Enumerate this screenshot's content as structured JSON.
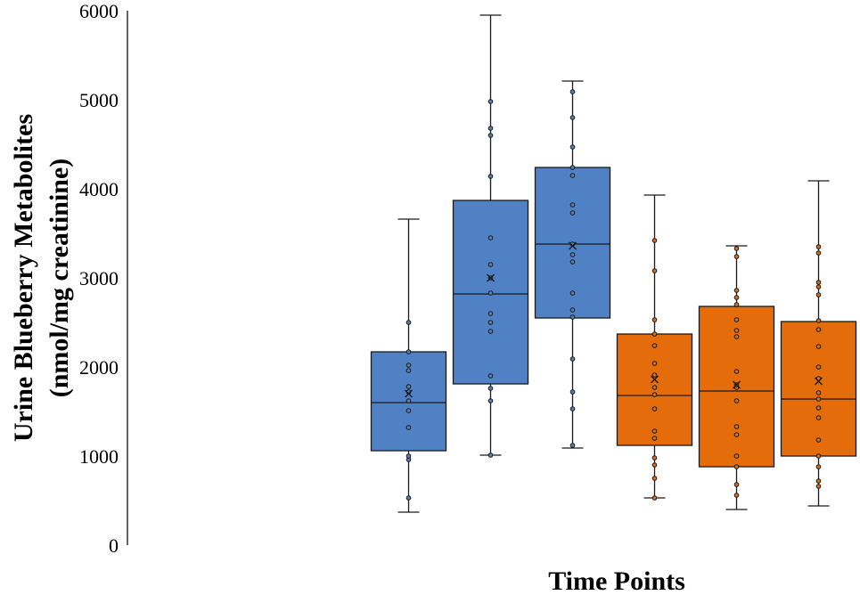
{
  "chart_data": {
    "type": "box",
    "xlabel": "Time Points",
    "ylabel_line1": "Urine Blueberry Metabolites",
    "ylabel_line2": "(nmol/mg creatinine)",
    "ylim": [
      0,
      6000
    ],
    "yticks": [
      0,
      1000,
      2000,
      3000,
      4000,
      5000,
      6000
    ],
    "grid": false,
    "colors": {
      "blue": "#4f81c4",
      "orange": "#e46c0a",
      "stroke": "#1a1a1a"
    },
    "boxes": [
      {
        "color": "blue",
        "min": 370,
        "q1": 1060,
        "median": 1600,
        "q3": 2170,
        "max": 3660,
        "mean": 1700,
        "points": [
          530,
          960,
          1000,
          1320,
          1510,
          1620,
          1720,
          1780,
          1960,
          2020,
          2170,
          2500
        ]
      },
      {
        "color": "blue",
        "min": 1010,
        "q1": 1810,
        "median": 2820,
        "q3": 3870,
        "max": 5950,
        "mean": 3000,
        "points": [
          1010,
          1620,
          1760,
          1900,
          2400,
          2500,
          2600,
          2830,
          3000,
          3150,
          3450,
          4140,
          4600,
          4680,
          4980
        ]
      },
      {
        "color": "blue",
        "min": 1090,
        "q1": 2550,
        "median": 3380,
        "q3": 4240,
        "max": 5210,
        "mean": 3360,
        "points": [
          1120,
          1530,
          1720,
          2090,
          2560,
          2640,
          2830,
          3180,
          3260,
          3380,
          3730,
          3820,
          4150,
          4240,
          4470,
          4800,
          5090
        ]
      },
      {
        "color": "orange",
        "min": 530,
        "q1": 1120,
        "median": 1680,
        "q3": 2370,
        "max": 3930,
        "mean": 1860,
        "points": [
          530,
          750,
          900,
          980,
          1200,
          1280,
          1530,
          1690,
          1770,
          1910,
          2040,
          2240,
          2370,
          2530,
          3080,
          3420
        ]
      },
      {
        "color": "orange",
        "min": 400,
        "q1": 880,
        "median": 1730,
        "q3": 2680,
        "max": 3360,
        "mean": 1800,
        "points": [
          560,
          680,
          880,
          1000,
          1240,
          1330,
          1620,
          1770,
          1800,
          1950,
          2340,
          2410,
          2530,
          2700,
          2780,
          2860,
          3240,
          3330
        ]
      },
      {
        "color": "orange",
        "min": 440,
        "q1": 1000,
        "median": 1640,
        "q3": 2510,
        "max": 4090,
        "mean": 1840,
        "points": [
          660,
          720,
          880,
          1000,
          1180,
          1430,
          1540,
          1640,
          1710,
          1870,
          2000,
          2230,
          2420,
          2520,
          2810,
          2900,
          2950,
          3280,
          3350
        ]
      }
    ]
  }
}
